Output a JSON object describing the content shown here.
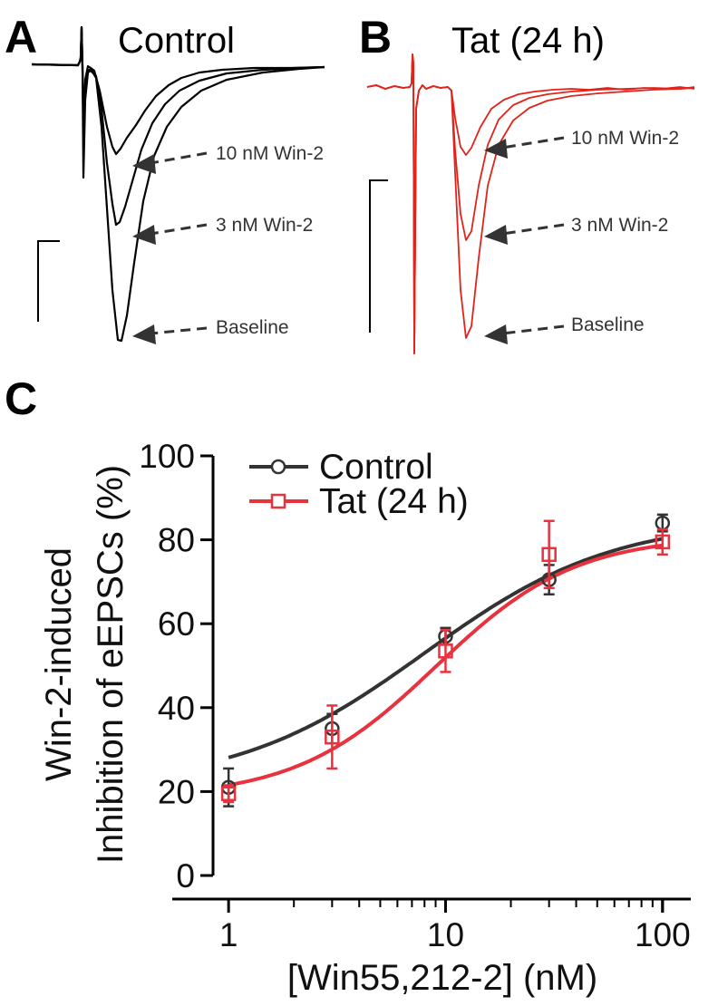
{
  "panels": {
    "a": {
      "letter": "A",
      "title": "Control",
      "color": "#000000"
    },
    "b": {
      "letter": "B",
      "title": "Tat (24 h)",
      "color": "#e2231a"
    },
    "c": {
      "letter": "C"
    }
  },
  "trace_labels": [
    "10 nM Win-2",
    "3 nM Win-2",
    "Baseline"
  ],
  "chart_data": {
    "type": "scatter",
    "xlabel": "[Win55,212-2] (nM)",
    "ylabel_lines": [
      "Win-2-induced",
      "Inhibition of eEPSCs (%)"
    ],
    "x_scale": "log",
    "xlim": [
      0.55,
      135
    ],
    "ylim": [
      0,
      100
    ],
    "x_ticks": [
      1,
      10,
      100
    ],
    "x_tick_labels": [
      "1",
      "10",
      "100"
    ],
    "y_ticks": [
      0,
      20,
      40,
      60,
      80,
      100
    ],
    "y_tick_labels": [
      "0",
      "20",
      "40",
      "60",
      "80",
      "100"
    ],
    "legend_position": "top-left",
    "grid": false,
    "x": [
      1,
      3,
      10,
      30,
      100
    ],
    "series": [
      {
        "name": "Control",
        "marker": "circle",
        "color": "#333333",
        "values": [
          21,
          35,
          57,
          70.5,
          84
        ],
        "error": [
          4.5,
          3.5,
          2,
          3.5,
          2
        ],
        "fit": {
          "bottom": 21,
          "top": 85,
          "ec50": 8,
          "hill": 1
        }
      },
      {
        "name": "Tat (24 h)",
        "marker": "square",
        "color": "#e8323e",
        "values": [
          19.5,
          33,
          53.5,
          76.5,
          79.5
        ],
        "error": [
          2,
          7.5,
          5,
          8,
          3
        ],
        "fit": {
          "bottom": 18.5,
          "top": 81,
          "ec50": 9,
          "hill": 1.35
        }
      }
    ]
  }
}
